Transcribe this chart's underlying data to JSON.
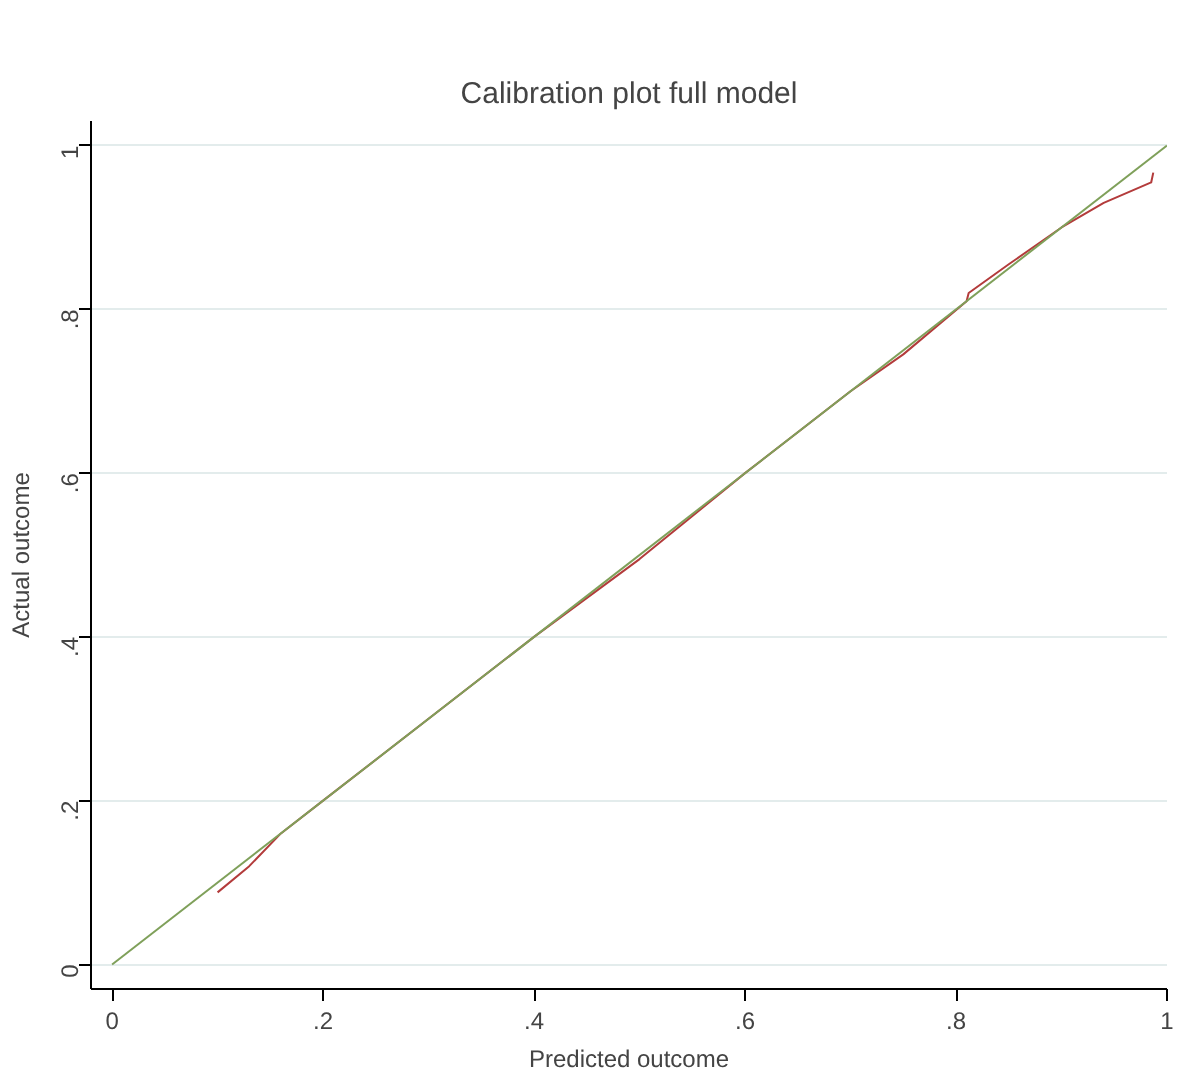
{
  "chart_data": {
    "type": "line",
    "title": "Calibration plot full model",
    "xlabel": "Predicted outcome",
    "ylabel": "Actual outcome",
    "xlim": [
      -0.02,
      1.0
    ],
    "ylim": [
      -0.03,
      1.03
    ],
    "xticks": [
      {
        "value": 0,
        "label": "0"
      },
      {
        "value": 0.2,
        "label": ".2"
      },
      {
        "value": 0.4,
        "label": ".4"
      },
      {
        "value": 0.6,
        "label": ".6"
      },
      {
        "value": 0.8,
        "label": ".8"
      },
      {
        "value": 1,
        "label": "1"
      }
    ],
    "yticks": [
      {
        "value": 0,
        "label": "0"
      },
      {
        "value": 0.2,
        "label": ".2"
      },
      {
        "value": 0.4,
        "label": ".4"
      },
      {
        "value": 0.6,
        "label": ".6"
      },
      {
        "value": 0.8,
        "label": ".8"
      },
      {
        "value": 1,
        "label": "1"
      }
    ],
    "grid": "y",
    "series": [
      {
        "color": "#b33b3b",
        "x": [
          0.1,
          0.13,
          0.16,
          0.2,
          0.3,
          0.4,
          0.5,
          0.6,
          0.65,
          0.7,
          0.75,
          0.81,
          0.812,
          0.85,
          0.9,
          0.94,
          0.985,
          0.987
        ],
        "values": [
          0.088,
          0.12,
          0.16,
          0.2,
          0.3,
          0.4,
          0.495,
          0.6,
          0.65,
          0.7,
          0.745,
          0.81,
          0.82,
          0.855,
          0.9,
          0.93,
          0.955,
          0.967
        ]
      },
      {
        "color": "#7fa05a",
        "x": [
          0,
          1
        ],
        "values": [
          0,
          1
        ]
      }
    ]
  }
}
